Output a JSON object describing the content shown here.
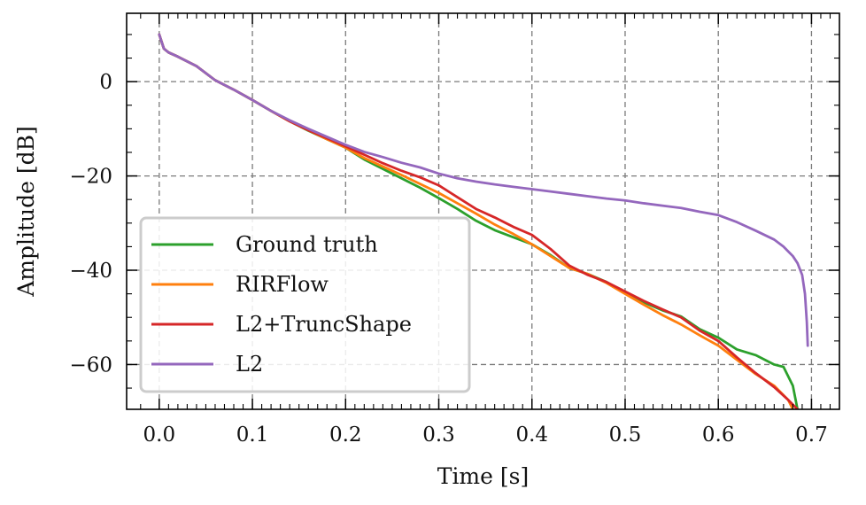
{
  "chart_data": {
    "type": "line",
    "title": "",
    "xlabel": "Time [s]",
    "ylabel": "Amplitude [dB]",
    "xlim": [
      -0.035,
      0.73
    ],
    "ylim": [
      -69.5,
      14.5
    ],
    "xticks": [
      0.0,
      0.1,
      0.2,
      0.3,
      0.4,
      0.5,
      0.6,
      0.7
    ],
    "xtick_labels": [
      "0.0",
      "0.1",
      "0.2",
      "0.3",
      "0.4",
      "0.5",
      "0.6",
      "0.7"
    ],
    "yticks": [
      0,
      -20,
      -40,
      -60
    ],
    "ytick_labels": [
      "0",
      "−20",
      "−40",
      "−60"
    ],
    "grid": true,
    "legend_position": "lower-left",
    "series": [
      {
        "name": "Ground truth",
        "color": "#2ca02c",
        "x": [
          0.0,
          0.005,
          0.01,
          0.02,
          0.04,
          0.06,
          0.08,
          0.1,
          0.12,
          0.14,
          0.16,
          0.18,
          0.2,
          0.22,
          0.24,
          0.26,
          0.28,
          0.3,
          0.32,
          0.34,
          0.36,
          0.38,
          0.4,
          0.42,
          0.44,
          0.46,
          0.48,
          0.5,
          0.52,
          0.54,
          0.56,
          0.58,
          0.6,
          0.62,
          0.64,
          0.66,
          0.67,
          0.68,
          0.685
        ],
        "y": [
          10,
          7,
          6.2,
          5.3,
          3.3,
          0.3,
          -1.7,
          -3.9,
          -6.2,
          -8.4,
          -10.4,
          -12.2,
          -14.0,
          -16.5,
          -18.5,
          -20.5,
          -22.5,
          -24.7,
          -27.0,
          -29.5,
          -31.5,
          -33.0,
          -34.5,
          -36.8,
          -39.5,
          -40.8,
          -42.5,
          -44.8,
          -46.8,
          -48.5,
          -49.8,
          -52.5,
          -54.3,
          -56.8,
          -58.0,
          -60.0,
          -60.5,
          -64.5,
          -69.5
        ]
      },
      {
        "name": "RIRFlow",
        "color": "#ff7f0e",
        "x": [
          0.0,
          0.005,
          0.01,
          0.02,
          0.04,
          0.06,
          0.08,
          0.1,
          0.12,
          0.14,
          0.16,
          0.18,
          0.2,
          0.22,
          0.24,
          0.26,
          0.28,
          0.3,
          0.32,
          0.34,
          0.36,
          0.38,
          0.4,
          0.42,
          0.44,
          0.46,
          0.48,
          0.5,
          0.52,
          0.54,
          0.56,
          0.58,
          0.6,
          0.62,
          0.64,
          0.66,
          0.675,
          0.68
        ],
        "y": [
          10,
          7,
          6.2,
          5.3,
          3.3,
          0.3,
          -1.7,
          -3.9,
          -6.2,
          -8.4,
          -10.3,
          -12.2,
          -14.0,
          -16.2,
          -18.0,
          -19.8,
          -21.7,
          -23.6,
          -25.8,
          -28.0,
          -30.3,
          -32.3,
          -34.5,
          -37.0,
          -39.5,
          -40.8,
          -42.7,
          -45.0,
          -47.3,
          -49.5,
          -51.5,
          -53.8,
          -56.0,
          -59.0,
          -62.0,
          -64.5,
          -67.5,
          -69.5
        ]
      },
      {
        "name": "L2+TruncShape",
        "color": "#d62728",
        "x": [
          0.0,
          0.005,
          0.01,
          0.02,
          0.04,
          0.06,
          0.08,
          0.1,
          0.12,
          0.14,
          0.16,
          0.18,
          0.2,
          0.22,
          0.24,
          0.26,
          0.28,
          0.3,
          0.32,
          0.34,
          0.36,
          0.38,
          0.4,
          0.42,
          0.44,
          0.46,
          0.48,
          0.5,
          0.52,
          0.54,
          0.56,
          0.58,
          0.6,
          0.62,
          0.64,
          0.66,
          0.675,
          0.685
        ],
        "y": [
          10,
          7,
          6.2,
          5.3,
          3.3,
          0.3,
          -1.7,
          -3.9,
          -6.2,
          -8.4,
          -10.3,
          -12.0,
          -13.7,
          -15.5,
          -17.3,
          -18.9,
          -20.3,
          -22.0,
          -24.5,
          -27.0,
          -28.8,
          -30.8,
          -32.5,
          -35.5,
          -39.0,
          -41.0,
          -42.5,
          -44.5,
          -46.5,
          -48.3,
          -50.0,
          -52.8,
          -55.0,
          -58.5,
          -61.8,
          -64.8,
          -67.5,
          -69.5
        ]
      },
      {
        "name": "L2",
        "color": "#9467bd",
        "x": [
          0.0,
          0.005,
          0.01,
          0.02,
          0.04,
          0.06,
          0.08,
          0.1,
          0.12,
          0.14,
          0.16,
          0.18,
          0.2,
          0.22,
          0.24,
          0.26,
          0.28,
          0.3,
          0.32,
          0.34,
          0.36,
          0.38,
          0.4,
          0.42,
          0.44,
          0.46,
          0.48,
          0.5,
          0.52,
          0.54,
          0.56,
          0.58,
          0.6,
          0.62,
          0.64,
          0.66,
          0.67,
          0.68,
          0.685,
          0.69,
          0.693,
          0.695,
          0.696
        ],
        "y": [
          10,
          7,
          6.2,
          5.3,
          3.3,
          0.3,
          -1.7,
          -3.9,
          -6.2,
          -8.2,
          -10.0,
          -11.7,
          -13.4,
          -14.9,
          -16.0,
          -17.2,
          -18.2,
          -19.5,
          -20.5,
          -21.2,
          -21.8,
          -22.3,
          -22.8,
          -23.3,
          -23.8,
          -24.3,
          -24.8,
          -25.2,
          -25.8,
          -26.3,
          -26.8,
          -27.6,
          -28.3,
          -29.8,
          -31.6,
          -33.5,
          -35.0,
          -37.0,
          -38.5,
          -41.0,
          -45.0,
          -51.0,
          -56.0
        ]
      }
    ]
  }
}
